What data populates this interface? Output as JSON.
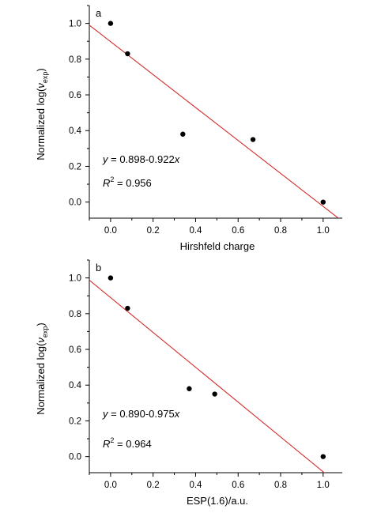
{
  "chart_data": [
    {
      "type": "scatter",
      "panel_label": "a",
      "xlabel": "Hirshfeld charge",
      "ylabel": {
        "prefix": "Normalized log(",
        "var": "ν",
        "sub": "exp",
        "suffix": ")"
      },
      "xlim": [
        -0.1,
        1.09
      ],
      "ylim": [
        -0.09,
        1.1
      ],
      "xticks": [
        "0.0",
        "0.2",
        "0.4",
        "0.6",
        "0.8",
        "1.0"
      ],
      "yticks": [
        "0.0",
        "0.2",
        "0.4",
        "0.6",
        "0.8",
        "1.0"
      ],
      "points": [
        {
          "x": 0.0,
          "y": 1.0
        },
        {
          "x": 0.08,
          "y": 0.83
        },
        {
          "x": 0.34,
          "y": 0.38
        },
        {
          "x": 0.67,
          "y": 0.35
        },
        {
          "x": 1.0,
          "y": 0.0
        }
      ],
      "fit": {
        "intercept": 0.898,
        "slope": -0.922,
        "color": "#d42a2a"
      },
      "equation": {
        "y": "y",
        "mid": " = 0.898-0.922",
        "x": "x"
      },
      "r2": {
        "r": "R",
        "sup": "2",
        "rest": " = 0.956"
      },
      "grid": false,
      "point_color": "#000000"
    },
    {
      "type": "scatter",
      "panel_label": "b",
      "xlabel": "ESP(1.6)/a.u.",
      "ylabel": {
        "prefix": "Normalized log(",
        "var": "ν",
        "sub": "exp",
        "suffix": ")"
      },
      "xlim": [
        -0.1,
        1.09
      ],
      "ylim": [
        -0.09,
        1.1
      ],
      "xticks": [
        "0.0",
        "0.2",
        "0.4",
        "0.6",
        "0.8",
        "1.0"
      ],
      "yticks": [
        "0.0",
        "0.2",
        "0.4",
        "0.6",
        "0.8",
        "1.0"
      ],
      "points": [
        {
          "x": 0.0,
          "y": 1.0
        },
        {
          "x": 0.08,
          "y": 0.83
        },
        {
          "x": 0.37,
          "y": 0.38
        },
        {
          "x": 0.49,
          "y": 0.35
        },
        {
          "x": 1.0,
          "y": 0.0
        }
      ],
      "fit": {
        "intercept": 0.89,
        "slope": -0.975,
        "color": "#d42a2a"
      },
      "equation": {
        "y": "y",
        "mid": " = 0.890-0.975",
        "x": "x"
      },
      "r2": {
        "r": "R",
        "sup": "2",
        "rest": " = 0.964"
      },
      "grid": false,
      "point_color": "#000000"
    }
  ]
}
